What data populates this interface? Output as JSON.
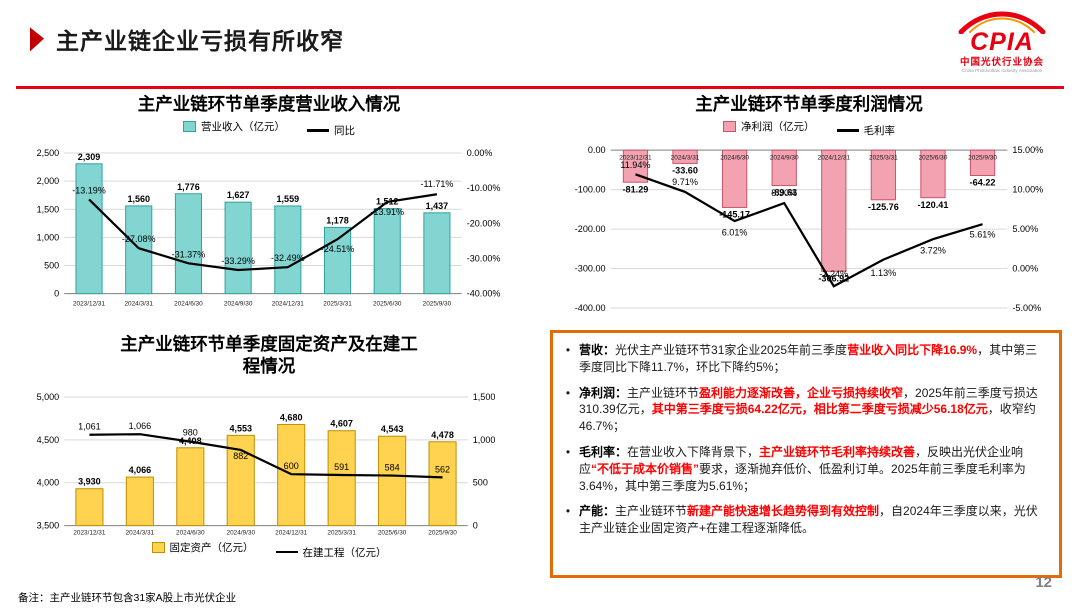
{
  "header": {
    "title": "主产业链企业亏损有所收窄"
  },
  "logo": {
    "name": "CPIA",
    "org_cn": "中国光伏行业协会",
    "org_en": "China Photovoltaic Industry Association"
  },
  "colors": {
    "accent": "#C00000",
    "rule": "#E60012",
    "panel_border": "#E36C09",
    "highlight": "#FF0000",
    "logo_red": "#E60012"
  },
  "chart_data": [
    {
      "type": "bar",
      "title": "主产业链环节单季度营业收入情况",
      "categories": [
        "2023/12/31",
        "2024/3/31",
        "2024/6/30",
        "2024/9/30",
        "2024/12/31",
        "2025/3/31",
        "2025/6/30",
        "2025/9/30"
      ],
      "series": [
        {
          "name": "营业收入（亿元）",
          "type": "bar",
          "axis": "left",
          "color": "#82D5D1",
          "border": "#2FA39E",
          "values": [
            2309,
            1560,
            1776,
            1627,
            1559,
            1178,
            1512,
            1437
          ],
          "labels": [
            "2,309",
            "1,560",
            "1,776",
            "1,627",
            "1,559",
            "1,178",
            "1,512",
            "1,437"
          ]
        },
        {
          "name": "同比",
          "type": "line",
          "axis": "right",
          "color": "#000000",
          "values": [
            -13.19,
            -27.08,
            -31.37,
            -33.29,
            -32.49,
            -24.51,
            -13.91,
            -11.71
          ],
          "labels": [
            "-13.19%",
            "-27.08%",
            "-31.37%",
            "-33.29%",
            "-32.49%",
            "-24.51%",
            "-13.91%",
            "-11.71%"
          ]
        }
      ],
      "left_axis": {
        "min": 0,
        "max": 2500,
        "ticks": [
          "2,500",
          "2,000",
          "1,500",
          "1,000",
          "500",
          "0"
        ]
      },
      "right_axis": {
        "min": -40,
        "max": 0,
        "ticks": [
          "0.00%",
          "-10.00%",
          "-20.00%",
          "-30.00%",
          "-40.00%"
        ]
      },
      "legend_position": "top",
      "grid": true
    },
    {
      "type": "bar",
      "title": "主产业链环节单季度利润情况",
      "categories": [
        "2023/12/31",
        "2024/3/31",
        "2024/6/30",
        "2024/9/30",
        "2024/12/31",
        "2025/3/31",
        "2025/6/30",
        "2025/9/30"
      ],
      "series": [
        {
          "name": "净利润（亿元）",
          "type": "bar",
          "axis": "left",
          "color": "#F2A2B1",
          "border": "#C9556A",
          "values": [
            -81.29,
            -33.6,
            -145.17,
            -89.63,
            -306.92,
            -125.76,
            -120.41,
            -64.22
          ],
          "labels": [
            "-81.29",
            "-33.60",
            "-145.17",
            "-89.63",
            "-306.92",
            "-125.76",
            "-120.41",
            "-64.22"
          ]
        },
        {
          "name": "毛利率",
          "type": "line",
          "axis": "right",
          "color": "#000000",
          "values": [
            11.94,
            9.71,
            6.01,
            8.3,
            -2.24,
            1.13,
            3.72,
            5.61
          ],
          "labels": [
            "11.94%",
            "9.71%",
            "6.01%",
            "8.30%",
            "-2.24%",
            "1.13%",
            "3.72%",
            "5.61%"
          ]
        }
      ],
      "left_axis": {
        "min": -400,
        "max": 0,
        "ticks": [
          "0.00",
          "-100.00",
          "-200.00",
          "-300.00",
          "-400.00"
        ]
      },
      "right_axis": {
        "min": -5,
        "max": 15,
        "ticks": [
          "15.00%",
          "10.00%",
          "5.00%",
          "0.00%",
          "-5.00%"
        ]
      },
      "legend_position": "top",
      "grid": true
    },
    {
      "type": "bar",
      "title": "主产业链环节单季度固定资产及在建工程情况",
      "categories": [
        "2023/12/31",
        "2024/3/31",
        "2024/6/30",
        "2024/9/30",
        "2024/12/31",
        "2025/3/31",
        "2025/6/30",
        "2025/9/30"
      ],
      "series": [
        {
          "name": "固定资产（亿元）",
          "type": "bar",
          "axis": "left",
          "color": "#FFD24F",
          "border": "#BF9000",
          "values": [
            3930,
            4066,
            4408,
            4553,
            4680,
            4607,
            4543,
            4478
          ],
          "labels": [
            "3,930",
            "4,066",
            "4,408",
            "4,553",
            "4,680",
            "4,607",
            "4,543",
            "4,478"
          ]
        },
        {
          "name": "在建工程（亿元）",
          "type": "line",
          "axis": "right",
          "color": "#000000",
          "values": [
            1061,
            1066,
            980,
            882,
            600,
            591,
            584,
            562
          ],
          "labels": [
            "1,061",
            "1,066",
            "980",
            "882",
            "600",
            "591",
            "584",
            "562"
          ]
        }
      ],
      "left_axis": {
        "min": 3500,
        "max": 5000,
        "ticks": [
          "5,000",
          "4,500",
          "4,000",
          "3,500"
        ]
      },
      "right_axis": {
        "min": 0,
        "max": 1500,
        "ticks": [
          "1,500",
          "1,000",
          "500",
          "0"
        ]
      },
      "legend_position": "bottom",
      "grid": true
    }
  ],
  "panel": {
    "marker": "•",
    "bullets": [
      [
        {
          "t": "营收：",
          "s": "label"
        },
        {
          "t": "光伏主产业链环节31家企业2025年前三季度",
          "s": "n"
        },
        {
          "t": "营业收入同比下降16.9%",
          "s": "hl"
        },
        {
          "t": "，其中第三季度同比下降11.7%，环比下降约5%；",
          "s": "n"
        }
      ],
      [
        {
          "t": "净利润：",
          "s": "label"
        },
        {
          "t": "主产业链环节",
          "s": "n"
        },
        {
          "t": "盈利能力逐渐改善，企业亏损持续收窄",
          "s": "hl"
        },
        {
          "t": "，2025年前三季度亏损达310.39亿元，",
          "s": "n"
        },
        {
          "t": "其中第三季度亏损64.22亿元，相比第二季度亏损减少56.18亿元",
          "s": "hl"
        },
        {
          "t": "，收窄约46.7%；",
          "s": "n"
        }
      ],
      [
        {
          "t": "毛利率：",
          "s": "label"
        },
        {
          "t": "在营业收入下降背景下，",
          "s": "n"
        },
        {
          "t": "主产业链环节毛利率持续改善",
          "s": "hl"
        },
        {
          "t": "，反映出光伏企业响应",
          "s": "n"
        },
        {
          "t": "“不低于成本价销售”",
          "s": "hl"
        },
        {
          "t": "要求，逐渐抛弃低价、低盈利订单。2025年前三季度毛利率为3.64%，其中第三季度为5.61%；",
          "s": "n"
        }
      ],
      [
        {
          "t": "产能：",
          "s": "label"
        },
        {
          "t": "主产业链环节",
          "s": "n"
        },
        {
          "t": "新建产能快速增长趋势得到有效控制",
          "s": "hl"
        },
        {
          "t": "，自2024年三季度以来，光伏主产业链企业固定资产+在建工程逐渐降低。",
          "s": "n"
        }
      ]
    ]
  },
  "footer": {
    "note": "备注：主产业链环节包含31家A股上市光伏企业",
    "page": "12"
  }
}
